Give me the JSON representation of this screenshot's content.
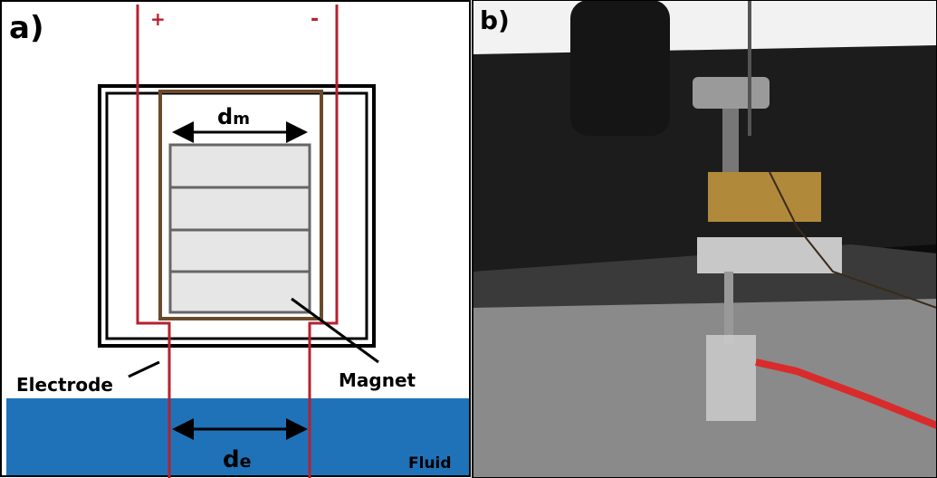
{
  "panel_a": {
    "label": "a)",
    "plus": "+",
    "minus": "-",
    "magnet_width": {
      "symbol": "d",
      "subscript": "m"
    },
    "electrode_gap": {
      "symbol": "d",
      "subscript": "e"
    },
    "electrode": "Electrode",
    "magnet": "Magnet",
    "fluid": "Fluid"
  },
  "panel_b": {
    "label": "b)"
  }
}
